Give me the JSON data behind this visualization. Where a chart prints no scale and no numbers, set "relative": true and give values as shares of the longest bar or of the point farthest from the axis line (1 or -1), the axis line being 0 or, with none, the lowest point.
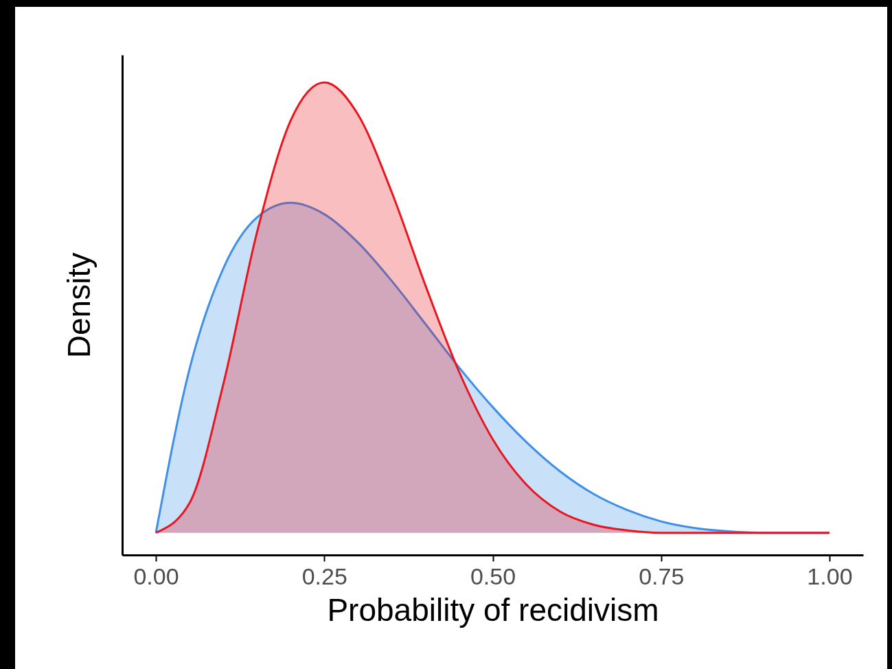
{
  "chart_data": {
    "type": "area",
    "xlabel": "Probability of recidivism",
    "ylabel": "Density",
    "relative": true,
    "x": [
      0,
      0.05,
      0.1,
      0.15,
      0.2,
      0.25,
      0.3,
      0.35,
      0.4,
      0.45,
      0.5,
      0.55,
      0.6,
      0.65,
      0.7,
      0.75,
      0.8,
      0.85,
      0.9,
      0.95,
      1
    ],
    "series": [
      {
        "color": "#3d8fe8",
        "values": [
          0.047,
          0.394,
          0.606,
          0.714,
          0.745,
          0.721,
          0.661,
          0.58,
          0.489,
          0.397,
          0.313,
          0.239,
          0.177,
          0.129,
          0.095,
          0.071,
          0.057,
          0.05,
          0.047,
          0.047,
          0.047
        ]
      },
      {
        "color": "#e8161e",
        "values": [
          0.047,
          0.11,
          0.361,
          0.682,
          0.919,
          1,
          0.932,
          0.768,
          0.571,
          0.388,
          0.245,
          0.149,
          0.092,
          0.064,
          0.052,
          0.047,
          0.047,
          0.047,
          0.047,
          0.047,
          0.047
        ]
      }
    ],
    "xlim": [
      -0.05,
      1.05
    ],
    "xticks": [
      {
        "value": 0,
        "label": "0.00"
      },
      {
        "value": 0.25,
        "label": "0.25"
      },
      {
        "value": 0.5,
        "label": "0.50"
      },
      {
        "value": 0.75,
        "label": "0.75"
      },
      {
        "value": 1,
        "label": "1.00"
      }
    ]
  }
}
